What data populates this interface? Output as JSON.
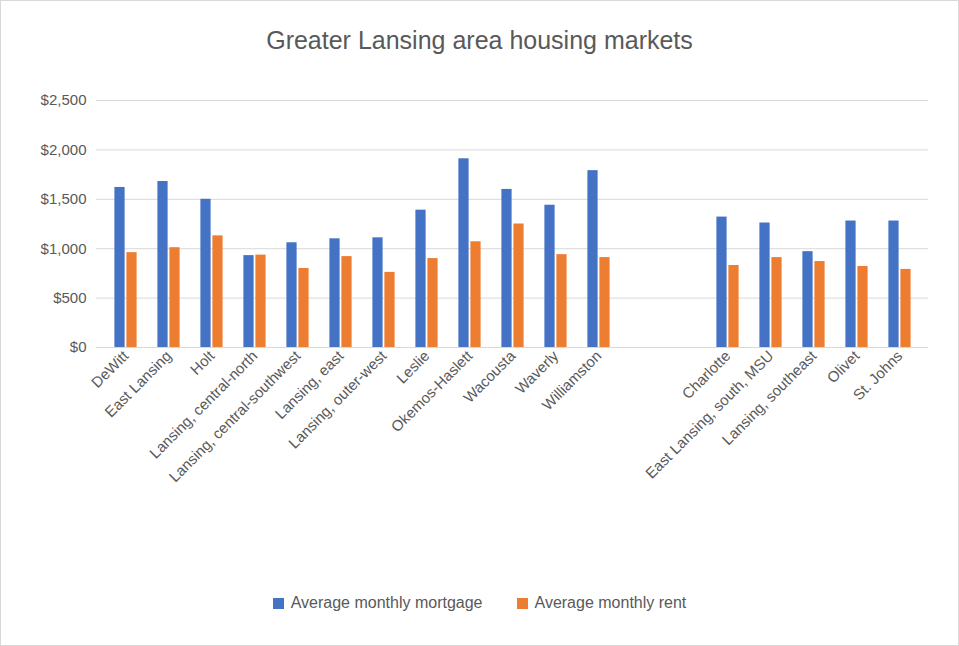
{
  "chart_data": {
    "type": "bar",
    "title": "Greater Lansing area housing markets",
    "categories": [
      "DeWitt",
      "East Lansing",
      "Holt",
      "Lansing, central-north",
      "Lansing, central-southwest",
      "Lansing, east",
      "Lansing, outer-west",
      "Leslie",
      "Okemos-Haslett",
      "Wacousta",
      "Waverly",
      "Williamston",
      null,
      null,
      "Charlotte",
      "East Lansing, south, MSU",
      "Lansing, southeast",
      "Olivet",
      "St. Johns"
    ],
    "series": [
      {
        "name": "Average monthly mortgage",
        "color": "#4472c4",
        "values": [
          1620,
          1680,
          1500,
          930,
          1060,
          1100,
          1110,
          1390,
          1910,
          1600,
          1440,
          1790,
          null,
          null,
          1320,
          1260,
          970,
          1280,
          1280
        ]
      },
      {
        "name": "Average monthly rent",
        "color": "#ed7d31",
        "values": [
          960,
          1010,
          1130,
          935,
          800,
          920,
          760,
          900,
          1070,
          1250,
          940,
          910,
          null,
          null,
          830,
          910,
          870,
          820,
          790
        ]
      }
    ],
    "ylim": [
      0,
      2500
    ],
    "yticks": [
      {
        "value": 0,
        "label": "$0"
      },
      {
        "value": 500,
        "label": "$500"
      },
      {
        "value": 1000,
        "label": "$1,000"
      },
      {
        "value": 1500,
        "label": "$1,500"
      },
      {
        "value": 2000,
        "label": "$2,000"
      },
      {
        "value": 2500,
        "label": "$2,500"
      }
    ],
    "grid": true,
    "legend": "bottom"
  }
}
